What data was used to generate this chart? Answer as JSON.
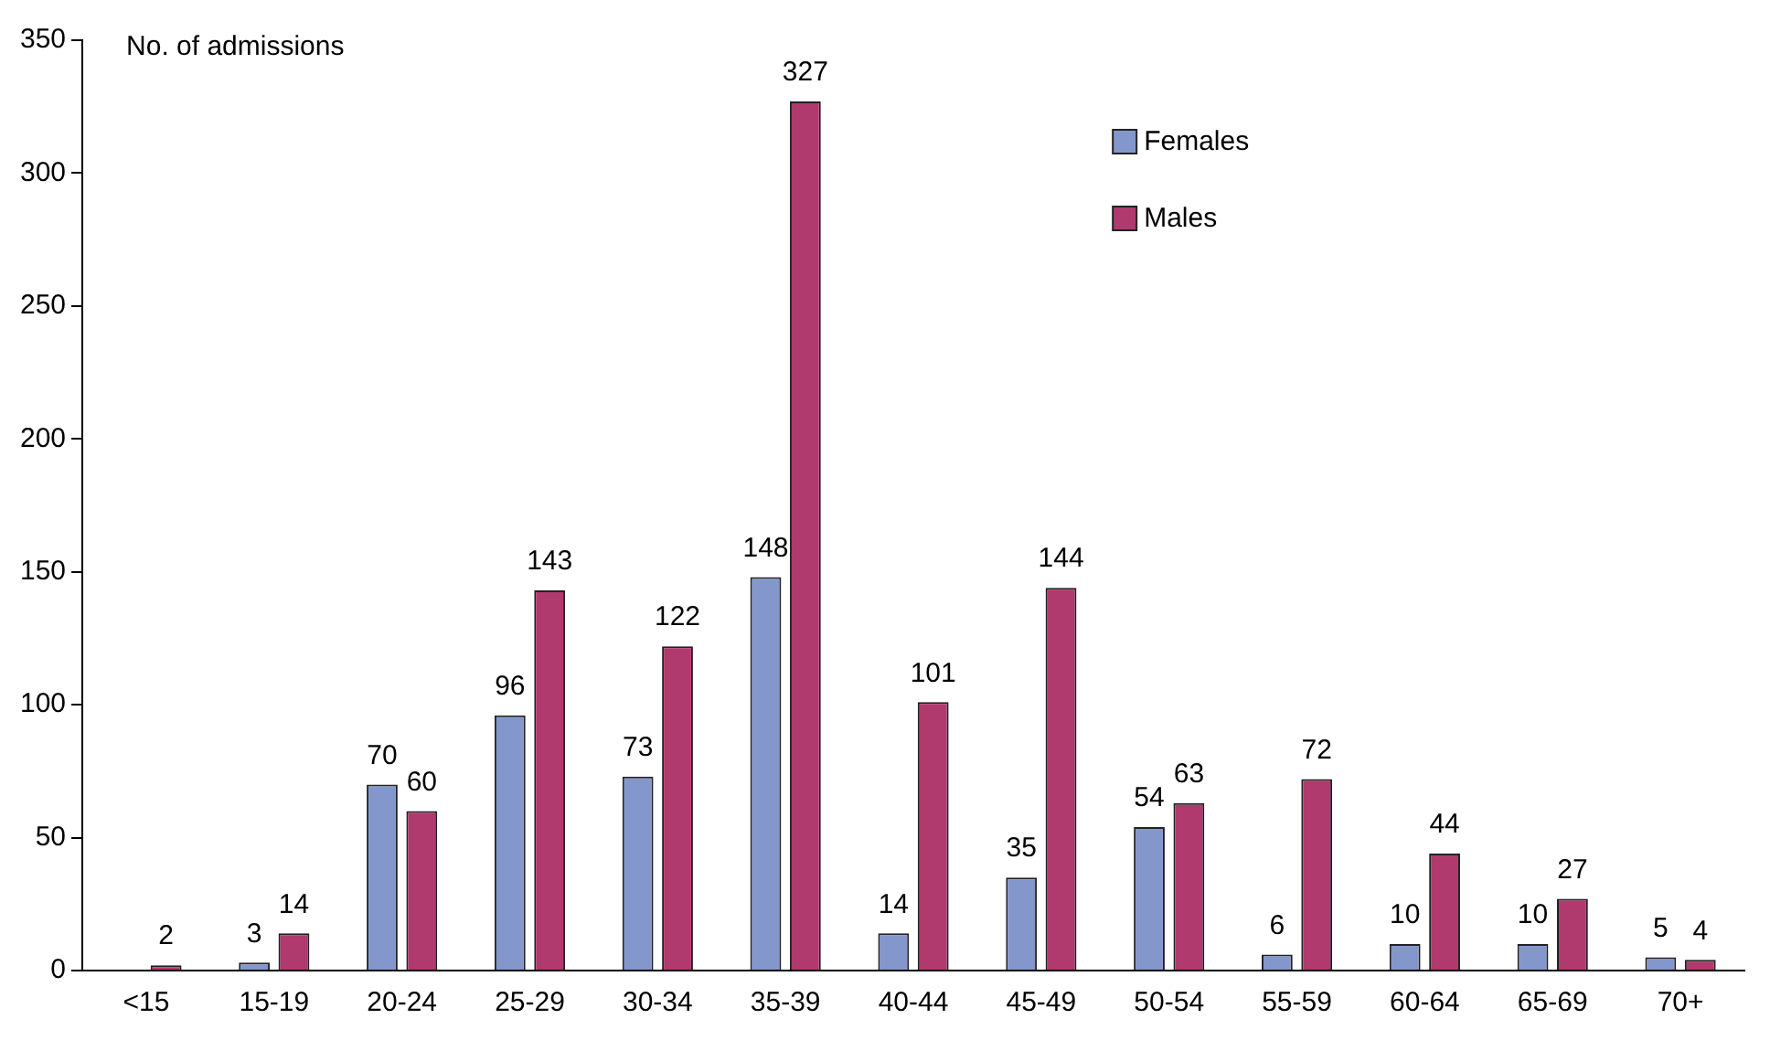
{
  "chart_data": {
    "type": "bar",
    "ylabel": "No. of admissions",
    "categories": [
      "<15",
      "15-19",
      "20-24",
      "25-29",
      "30-34",
      "35-39",
      "40-44",
      "45-49",
      "50-54",
      "55-59",
      "60-64",
      "65-69",
      "70+"
    ],
    "series": [
      {
        "name": "Females",
        "color": "#8497cc",
        "values": [
          null,
          3,
          70,
          96,
          73,
          148,
          14,
          35,
          54,
          6,
          10,
          10,
          5
        ]
      },
      {
        "name": "Males",
        "color": "#b0396e",
        "values": [
          2,
          14,
          60,
          143,
          122,
          327,
          101,
          144,
          63,
          72,
          44,
          27,
          4
        ]
      }
    ],
    "ylim": [
      0,
      350
    ],
    "yticks": [
      0,
      50,
      100,
      150,
      200,
      250,
      300,
      350
    ],
    "data_labels": true,
    "legend": "top right",
    "grid": false
  }
}
